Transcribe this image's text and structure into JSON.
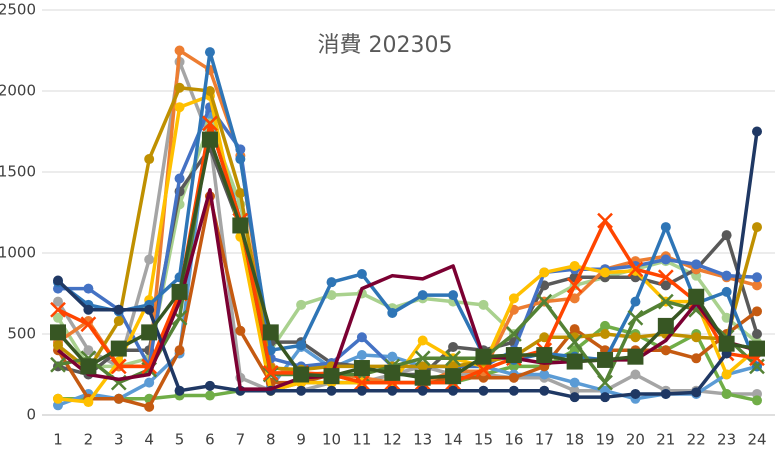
{
  "chart_data": {
    "type": "line",
    "title": "消費 202305",
    "categories": [
      1,
      2,
      3,
      4,
      5,
      6,
      7,
      8,
      9,
      10,
      11,
      12,
      13,
      14,
      15,
      16,
      17,
      18,
      19,
      20,
      21,
      22,
      23,
      24
    ],
    "ylim": [
      0,
      2500
    ],
    "yticks": [
      0,
      500,
      1000,
      1500,
      2000,
      2500
    ],
    "grid": true,
    "series": [
      {
        "color": "#a5a5a5",
        "marker": "circle",
        "values": [
          700,
          400,
          300,
          960,
          2180,
          1700,
          230,
          150,
          150,
          200,
          200,
          250,
          300,
          250,
          250,
          230,
          230,
          150,
          150,
          250,
          150,
          150,
          130,
          130
        ]
      },
      {
        "color": "#70ad47",
        "marker": "circle",
        "values": [
          100,
          100,
          100,
          100,
          120,
          120,
          150,
          150,
          200,
          200,
          200,
          200,
          200,
          200,
          250,
          300,
          300,
          400,
          550,
          500,
          400,
          500,
          130,
          90
        ]
      },
      {
        "color": "#5b9bd5",
        "marker": "circle",
        "values": [
          60,
          130,
          100,
          200,
          380,
          1870,
          1200,
          170,
          420,
          290,
          370,
          360,
          300,
          300,
          300,
          250,
          250,
          200,
          150,
          100,
          130,
          130,
          250,
          300
        ]
      },
      {
        "color": "#a9d18e",
        "marker": "circle",
        "values": [
          600,
          300,
          300,
          350,
          1300,
          1800,
          1300,
          400,
          680,
          740,
          750,
          660,
          720,
          700,
          680,
          500,
          700,
          800,
          850,
          900,
          950,
          860,
          600,
          450
        ]
      },
      {
        "color": "#595959",
        "marker": "circle",
        "values": [
          300,
          250,
          400,
          400,
          1380,
          1650,
          1160,
          450,
          450,
          320,
          300,
          250,
          250,
          420,
          400,
          450,
          800,
          850,
          850,
          850,
          800,
          900,
          1110,
          500
        ]
      },
      {
        "color": "#c55a11",
        "marker": "circle",
        "values": [
          400,
          100,
          100,
          50,
          400,
          1350,
          520,
          200,
          200,
          250,
          200,
          200,
          200,
          230,
          230,
          230,
          300,
          530,
          400,
          400,
          400,
          350,
          500,
          640
        ]
      },
      {
        "color": "#ed7d31",
        "marker": "circle",
        "values": [
          450,
          580,
          300,
          300,
          2250,
          2130,
          1600,
          300,
          250,
          260,
          230,
          200,
          200,
          270,
          270,
          650,
          700,
          720,
          900,
          950,
          980,
          900,
          850,
          800
        ]
      },
      {
        "color": "#4472c4",
        "marker": "circle",
        "values": [
          780,
          780,
          650,
          300,
          1460,
          1900,
          1640,
          350,
          300,
          320,
          480,
          300,
          300,
          300,
          300,
          400,
          880,
          900,
          900,
          920,
          960,
          930,
          860,
          850
        ]
      },
      {
        "color": "#ffc000",
        "marker": "circle",
        "values": [
          100,
          80,
          330,
          710,
          1900,
          1970,
          1100,
          150,
          200,
          200,
          200,
          200,
          460,
          350,
          300,
          720,
          880,
          920,
          880,
          890,
          700,
          700,
          250,
          410
        ]
      },
      {
        "color": "#bf9000",
        "marker": "circle",
        "values": [
          430,
          280,
          580,
          1580,
          2020,
          2000,
          1370,
          290,
          280,
          300,
          300,
          300,
          300,
          300,
          330,
          360,
          480,
          480,
          500,
          480,
          500,
          480,
          470,
          1160
        ]
      },
      {
        "color": "#2e75b6",
        "marker": "circle",
        "values": [
          820,
          680,
          640,
          680,
          850,
          2240,
          1580,
          400,
          430,
          820,
          870,
          630,
          740,
          740,
          370,
          340,
          380,
          360,
          340,
          700,
          1160,
          690,
          760,
          300
        ]
      },
      {
        "color": "#548235",
        "marker": "x",
        "values": [
          310,
          350,
          200,
          280,
          600,
          1800,
          1200,
          250,
          250,
          250,
          250,
          300,
          350,
          350,
          350,
          500,
          700,
          450,
          200,
          600,
          700,
          650,
          480,
          300
        ]
      },
      {
        "color": "#ff4500",
        "marker": "x",
        "values": [
          650,
          560,
          300,
          300,
          750,
          1800,
          1200,
          260,
          260,
          250,
          200,
          200,
          200,
          200,
          280,
          350,
          400,
          800,
          1200,
          900,
          850,
          700,
          380,
          350
        ]
      },
      {
        "color": "#1f3864",
        "marker": "circle",
        "values": [
          830,
          650,
          650,
          650,
          150,
          180,
          150,
          150,
          150,
          150,
          150,
          150,
          150,
          150,
          150,
          150,
          150,
          110,
          110,
          130,
          130,
          140,
          380,
          1750
        ]
      },
      {
        "color": "#7b0032",
        "marker": "none",
        "values": [
          400,
          250,
          220,
          250,
          700,
          1390,
          160,
          160,
          230,
          240,
          780,
          860,
          840,
          920,
          360,
          350,
          320,
          330,
          340,
          340,
          460,
          690,
          450,
          400
        ]
      },
      {
        "color": "#375623",
        "marker": "square",
        "values": [
          510,
          300,
          410,
          510,
          760,
          1700,
          1170,
          510,
          250,
          240,
          290,
          260,
          230,
          240,
          360,
          370,
          370,
          330,
          340,
          360,
          550,
          730,
          440,
          410
        ]
      }
    ]
  }
}
